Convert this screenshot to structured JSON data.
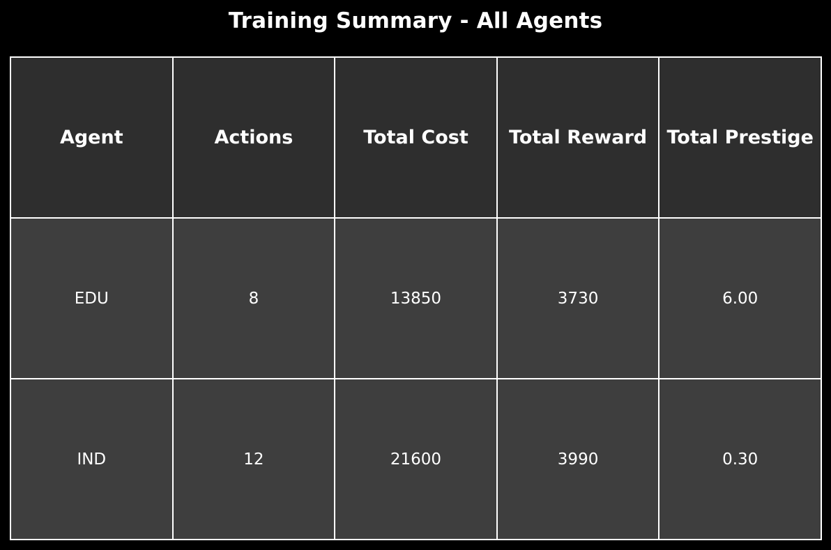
{
  "chart_data": {
    "type": "table",
    "title": "Training Summary - All Agents",
    "columns": [
      "Agent",
      "Actions",
      "Total Cost",
      "Total Reward",
      "Total Prestige"
    ],
    "rows": [
      [
        "EDU",
        "8",
        "13850",
        "3730",
        "6.00"
      ],
      [
        "IND",
        "12",
        "21600",
        "3990",
        "0.30"
      ]
    ]
  },
  "colors": {
    "background": "#000000",
    "header_cell": "#2e2e2e",
    "body_cell": "#3e3e3e",
    "grid": "#ffffff",
    "text": "#ffffff"
  }
}
